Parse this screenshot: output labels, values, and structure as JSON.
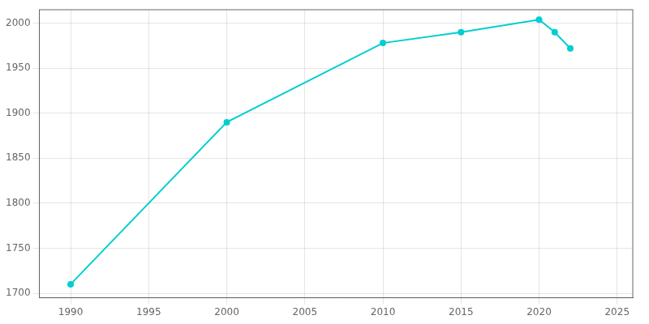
{
  "chart_data": {
    "type": "line",
    "x": [
      1990,
      2000,
      2010,
      2015,
      2020,
      2021,
      2022
    ],
    "values": [
      1710,
      1890,
      1978,
      1990,
      2004,
      1990,
      1972
    ],
    "color": "#00CED1",
    "marker": "circle",
    "xlim": [
      1988,
      2026
    ],
    "ylim": [
      1695,
      2015
    ],
    "xticks": [
      1990,
      1995,
      2000,
      2005,
      2010,
      2015,
      2020,
      2025
    ],
    "yticks": [
      1700,
      1750,
      1800,
      1850,
      1900,
      1950,
      2000
    ],
    "grid": true
  }
}
